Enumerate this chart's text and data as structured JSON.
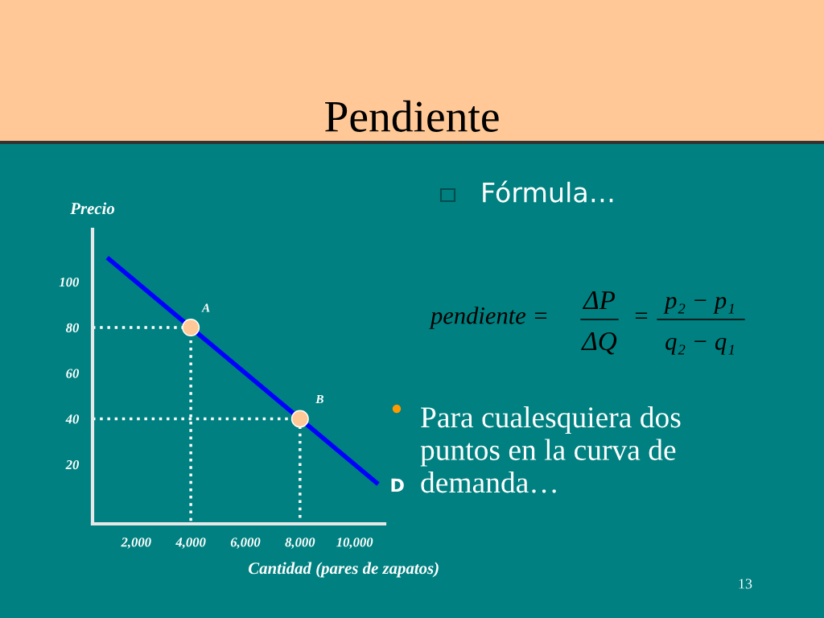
{
  "chart_data": {
    "type": "line",
    "title": "Pendiente",
    "xlabel": "Cantidad (pares de zapatos)",
    "ylabel": "Precio",
    "xlim": [
      400,
      11100
    ],
    "ylim": [
      -6,
      123
    ],
    "xticks": [
      {
        "value": 2000,
        "label": "2,000"
      },
      {
        "value": 4000,
        "label": "4,000"
      },
      {
        "value": 6000,
        "label": "6,000"
      },
      {
        "value": 8000,
        "label": "8,000"
      },
      {
        "value": 10000,
        "label": "10,000"
      }
    ],
    "yticks": [
      20,
      40,
      60,
      80,
      100
    ],
    "grid": false,
    "legend": false,
    "series": [
      {
        "color": "#0000ff",
        "x": [
          1000,
          10800
        ],
        "values": [
          110,
          12
        ],
        "line_style": "solid",
        "marker": "none"
      },
      {
        "color": "#ffffff",
        "x": [
          400,
          4000,
          4000
        ],
        "values": [
          80,
          80,
          -6
        ],
        "line_style": "dotted",
        "marker": "none"
      },
      {
        "color": "#ffffff",
        "x": [
          400,
          8000,
          8000
        ],
        "values": [
          40,
          40,
          -6
        ],
        "line_style": "dotted",
        "marker": "none"
      },
      {
        "type": "scatter",
        "color": "#ffc896",
        "x": [
          4000,
          8000
        ],
        "values": [
          80,
          40
        ],
        "marker": "circle"
      }
    ],
    "annotations": [
      {
        "text": "A",
        "x": 4000,
        "y": 80
      },
      {
        "text": "B",
        "x": 8000,
        "y": 40
      },
      {
        "text": "D",
        "x": 10800,
        "y": 12
      },
      "Fórmula…",
      "pendiente =",
      "ΔP",
      "ΔQ",
      "=",
      "p₂ − p₁",
      "q₂ − q₁",
      "Para cualesquiera dos puntos en la curva de demanda…",
      "13"
    ]
  }
}
